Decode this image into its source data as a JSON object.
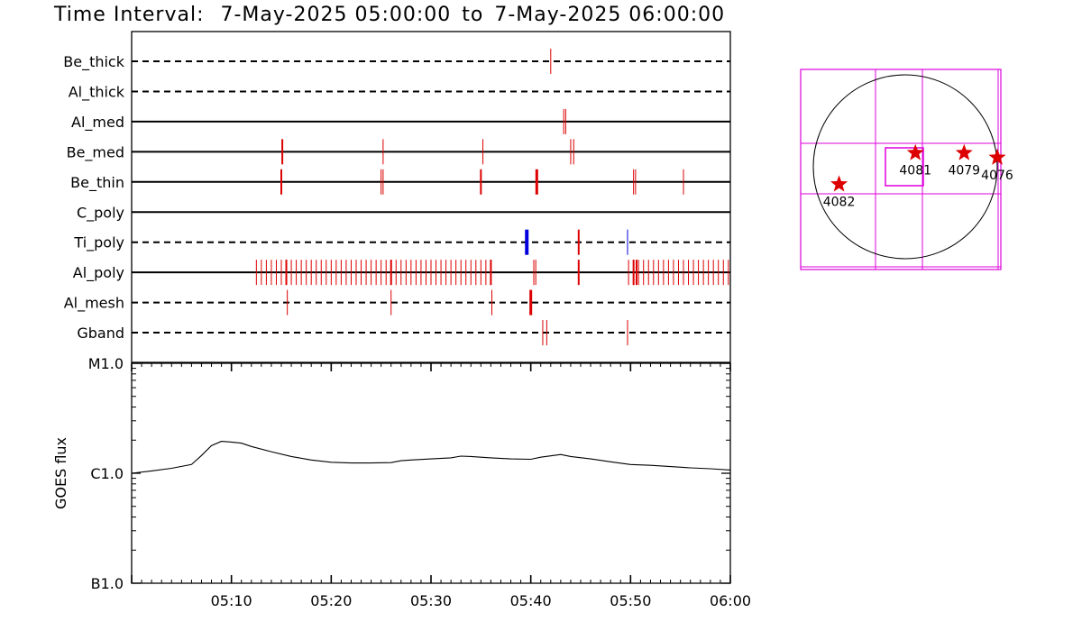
{
  "header": {
    "title_prefix": "Time Interval:",
    "start": "7-May-2025 05:00:00",
    "joiner": "to",
    "end": "7-May-2025 06:00:00"
  },
  "colors": {
    "event_red": "#dd0000",
    "event_blue": "#0000dd",
    "grid_magenta": "#dd00dd",
    "ink": "#000000"
  },
  "chart_data": [
    {
      "type": "scatter",
      "name_hint": "filter-timeline",
      "x_unit": "minutes after 05:00",
      "xlim": [
        0,
        60
      ],
      "rows": [
        {
          "label": "Be_thick",
          "line": "dashed",
          "events": [
            {
              "t": 42.0,
              "w": 1,
              "c": "red"
            }
          ]
        },
        {
          "label": "Al_thick",
          "line": "dashed",
          "events": []
        },
        {
          "label": "Al_med",
          "line": "solid",
          "events": [
            {
              "t": 43.3,
              "w": 1,
              "c": "red"
            },
            {
              "t": 43.5,
              "w": 1,
              "c": "red"
            }
          ]
        },
        {
          "label": "Be_med",
          "line": "solid",
          "events": [
            {
              "t": 15.1,
              "w": 2,
              "c": "red"
            },
            {
              "t": 25.2,
              "w": 1,
              "c": "red"
            },
            {
              "t": 35.2,
              "w": 1,
              "c": "red"
            },
            {
              "t": 44.0,
              "w": 1,
              "c": "red"
            },
            {
              "t": 44.3,
              "w": 1,
              "c": "red"
            }
          ]
        },
        {
          "label": "Be_thin",
          "line": "solid",
          "events": [
            {
              "t": 15.0,
              "w": 2,
              "c": "red"
            },
            {
              "t": 25.0,
              "w": 1,
              "c": "red"
            },
            {
              "t": 25.2,
              "w": 1,
              "c": "red"
            },
            {
              "t": 35.0,
              "w": 2,
              "c": "red"
            },
            {
              "t": 40.6,
              "w": 3,
              "c": "red"
            },
            {
              "t": 50.3,
              "w": 1,
              "c": "red"
            },
            {
              "t": 50.5,
              "w": 1,
              "c": "red"
            },
            {
              "t": 55.3,
              "w": 1,
              "c": "red"
            }
          ]
        },
        {
          "label": "C_poly",
          "line": "solid",
          "events": []
        },
        {
          "label": "Ti_poly",
          "line": "dashed",
          "events": [
            {
              "t": 39.6,
              "w": 4,
              "c": "blue"
            },
            {
              "t": 44.8,
              "w": 2,
              "c": "red"
            },
            {
              "t": 49.7,
              "w": 1,
              "c": "blue"
            }
          ]
        },
        {
          "label": "Al_poly",
          "line": "solid",
          "dense": [
            {
              "from": 12.5,
              "to": 36.0,
              "step": 0.5
            },
            {
              "from": 49.8,
              "to": 60.0,
              "step": 0.5
            }
          ],
          "events": [
            {
              "t": 15.5,
              "w": 2,
              "c": "red"
            },
            {
              "t": 26.0,
              "w": 2,
              "c": "red"
            },
            {
              "t": 36.0,
              "w": 2,
              "c": "red"
            },
            {
              "t": 40.3,
              "w": 1,
              "c": "red"
            },
            {
              "t": 40.5,
              "w": 1,
              "c": "red"
            },
            {
              "t": 44.8,
              "w": 2,
              "c": "red"
            },
            {
              "t": 50.3,
              "w": 2,
              "c": "red"
            },
            {
              "t": 50.6,
              "w": 2,
              "c": "red"
            }
          ]
        },
        {
          "label": "Al_mesh",
          "line": "dashed",
          "events": [
            {
              "t": 15.6,
              "w": 1,
              "c": "red"
            },
            {
              "t": 26.0,
              "w": 1,
              "c": "red"
            },
            {
              "t": 36.1,
              "w": 1,
              "c": "red"
            },
            {
              "t": 40.0,
              "w": 3,
              "c": "red"
            }
          ]
        },
        {
          "label": "Gband",
          "line": "dashed",
          "events": [
            {
              "t": 41.2,
              "w": 1,
              "c": "red"
            },
            {
              "t": 41.6,
              "w": 1,
              "c": "red"
            },
            {
              "t": 49.7,
              "w": 1,
              "c": "red"
            }
          ]
        }
      ]
    },
    {
      "type": "line",
      "name_hint": "goes-flux",
      "ylabel": "GOES flux",
      "yscale": "log",
      "ylim": [
        1e-07,
        1e-05
      ],
      "yticks": [
        {
          "v": 1e-05,
          "label": "M1.0"
        },
        {
          "v": 1e-06,
          "label": "C1.0"
        },
        {
          "v": 1e-07,
          "label": "B1.0"
        }
      ],
      "xlim": [
        0,
        60
      ],
      "xticks": [
        {
          "t": 10,
          "label": "05:10"
        },
        {
          "t": 20,
          "label": "05:20"
        },
        {
          "t": 30,
          "label": "05:30"
        },
        {
          "t": 40,
          "label": "05:40"
        },
        {
          "t": 50,
          "label": "05:50"
        },
        {
          "t": 60,
          "label": "06:00"
        }
      ],
      "x": [
        0,
        2,
        4,
        6,
        7,
        8,
        9,
        10,
        11,
        12,
        14,
        16,
        18,
        20,
        22,
        24,
        26,
        27,
        28,
        30,
        32,
        33,
        34,
        36,
        38,
        40,
        41,
        42,
        43,
        44,
        46,
        48,
        50,
        52,
        54,
        56,
        58,
        60
      ],
      "y": [
        1e-06,
        1.05e-06,
        1.11e-06,
        1.2e-06,
        1.45e-06,
        1.78e-06,
        1.95e-06,
        1.92e-06,
        1.88e-06,
        1.75e-06,
        1.57e-06,
        1.42e-06,
        1.32e-06,
        1.26e-06,
        1.24e-06,
        1.24e-06,
        1.25e-06,
        1.3e-06,
        1.32e-06,
        1.35e-06,
        1.38e-06,
        1.43e-06,
        1.42e-06,
        1.38e-06,
        1.35e-06,
        1.34e-06,
        1.4e-06,
        1.44e-06,
        1.48e-06,
        1.42e-06,
        1.35e-06,
        1.27e-06,
        1.2e-06,
        1.18e-06,
        1.15e-06,
        1.12e-06,
        1.1e-06,
        1.07e-06
      ]
    }
  ],
  "sun_map": {
    "regions": [
      {
        "label": "4082",
        "lon": -0.72,
        "lat": -0.19
      },
      {
        "label": "4081",
        "lon": 0.11,
        "lat": 0.15
      },
      {
        "label": "4079",
        "lon": 0.64,
        "lat": 0.15
      },
      {
        "label": "4076",
        "lon": 1.0,
        "lat": 0.1
      }
    ]
  }
}
